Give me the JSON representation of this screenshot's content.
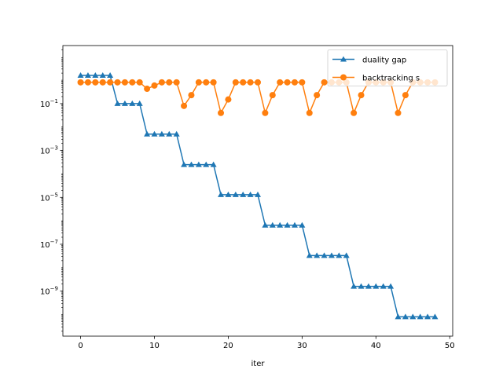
{
  "chart_data": {
    "type": "line",
    "xlabel": "iter",
    "ylabel": "",
    "title": "",
    "yscale": "log",
    "xlim": [
      -2.4,
      50.4
    ],
    "ylim": [
      1.2e-11,
      30
    ],
    "xticks": [
      0,
      10,
      20,
      30,
      40,
      50
    ],
    "yticks": [
      {
        "value": 0.1,
        "base": "10",
        "exp": "−1"
      },
      {
        "value": 0.001,
        "base": "10",
        "exp": "−3"
      },
      {
        "value": 1e-05,
        "base": "10",
        "exp": "−5"
      },
      {
        "value": 1e-07,
        "base": "10",
        "exp": "−7"
      },
      {
        "value": 1e-09,
        "base": "10",
        "exp": "−9"
      }
    ],
    "grid": false,
    "legend_position": "top-right",
    "series": [
      {
        "name": "duality gap",
        "color": "#1f77b4",
        "marker": "triangle",
        "x": [
          0,
          1,
          2,
          3,
          4,
          5,
          6,
          7,
          8,
          9,
          10,
          11,
          12,
          13,
          14,
          15,
          16,
          17,
          18,
          19,
          20,
          21,
          22,
          23,
          24,
          25,
          26,
          27,
          28,
          29,
          30,
          31,
          32,
          33,
          34,
          35,
          36,
          37,
          38,
          39,
          40,
          41,
          42,
          43,
          44,
          45,
          46,
          47,
          48
        ],
        "values": [
          1.6,
          1.6,
          1.6,
          1.6,
          1.6,
          0.1,
          0.1,
          0.1,
          0.1,
          0.005,
          0.005,
          0.005,
          0.005,
          0.005,
          0.00025,
          0.00025,
          0.00025,
          0.00025,
          0.00025,
          1.3e-05,
          1.3e-05,
          1.3e-05,
          1.3e-05,
          1.3e-05,
          1.3e-05,
          6.5e-07,
          6.5e-07,
          6.5e-07,
          6.5e-07,
          6.5e-07,
          6.5e-07,
          3.3e-08,
          3.3e-08,
          3.3e-08,
          3.3e-08,
          3.3e-08,
          3.3e-08,
          1.6e-09,
          1.6e-09,
          1.6e-09,
          1.6e-09,
          1.6e-09,
          1.6e-09,
          8e-11,
          8e-11,
          8e-11,
          8e-11,
          8e-11,
          8e-11
        ]
      },
      {
        "name": "backtracking s",
        "color": "#ff7f0e",
        "marker": "circle",
        "x": [
          0,
          1,
          2,
          3,
          4,
          5,
          6,
          7,
          8,
          9,
          10,
          11,
          12,
          13,
          14,
          15,
          16,
          17,
          18,
          19,
          20,
          21,
          22,
          23,
          24,
          25,
          26,
          27,
          28,
          29,
          30,
          31,
          32,
          33,
          34,
          35,
          36,
          37,
          38,
          39,
          40,
          41,
          42,
          43,
          44,
          45,
          46,
          47,
          48
        ],
        "values": [
          0.81,
          0.81,
          0.81,
          0.81,
          0.81,
          0.81,
          0.81,
          0.81,
          0.81,
          0.43,
          0.59,
          0.81,
          0.81,
          0.81,
          0.08,
          0.23,
          0.81,
          0.81,
          0.81,
          0.04,
          0.15,
          0.81,
          0.81,
          0.81,
          0.81,
          0.04,
          0.23,
          0.81,
          0.81,
          0.81,
          0.81,
          0.04,
          0.23,
          0.81,
          0.81,
          0.81,
          0.81,
          0.04,
          0.23,
          0.81,
          0.81,
          0.81,
          0.81,
          0.04,
          0.23,
          0.81,
          0.81,
          0.81,
          0.81
        ]
      }
    ]
  }
}
